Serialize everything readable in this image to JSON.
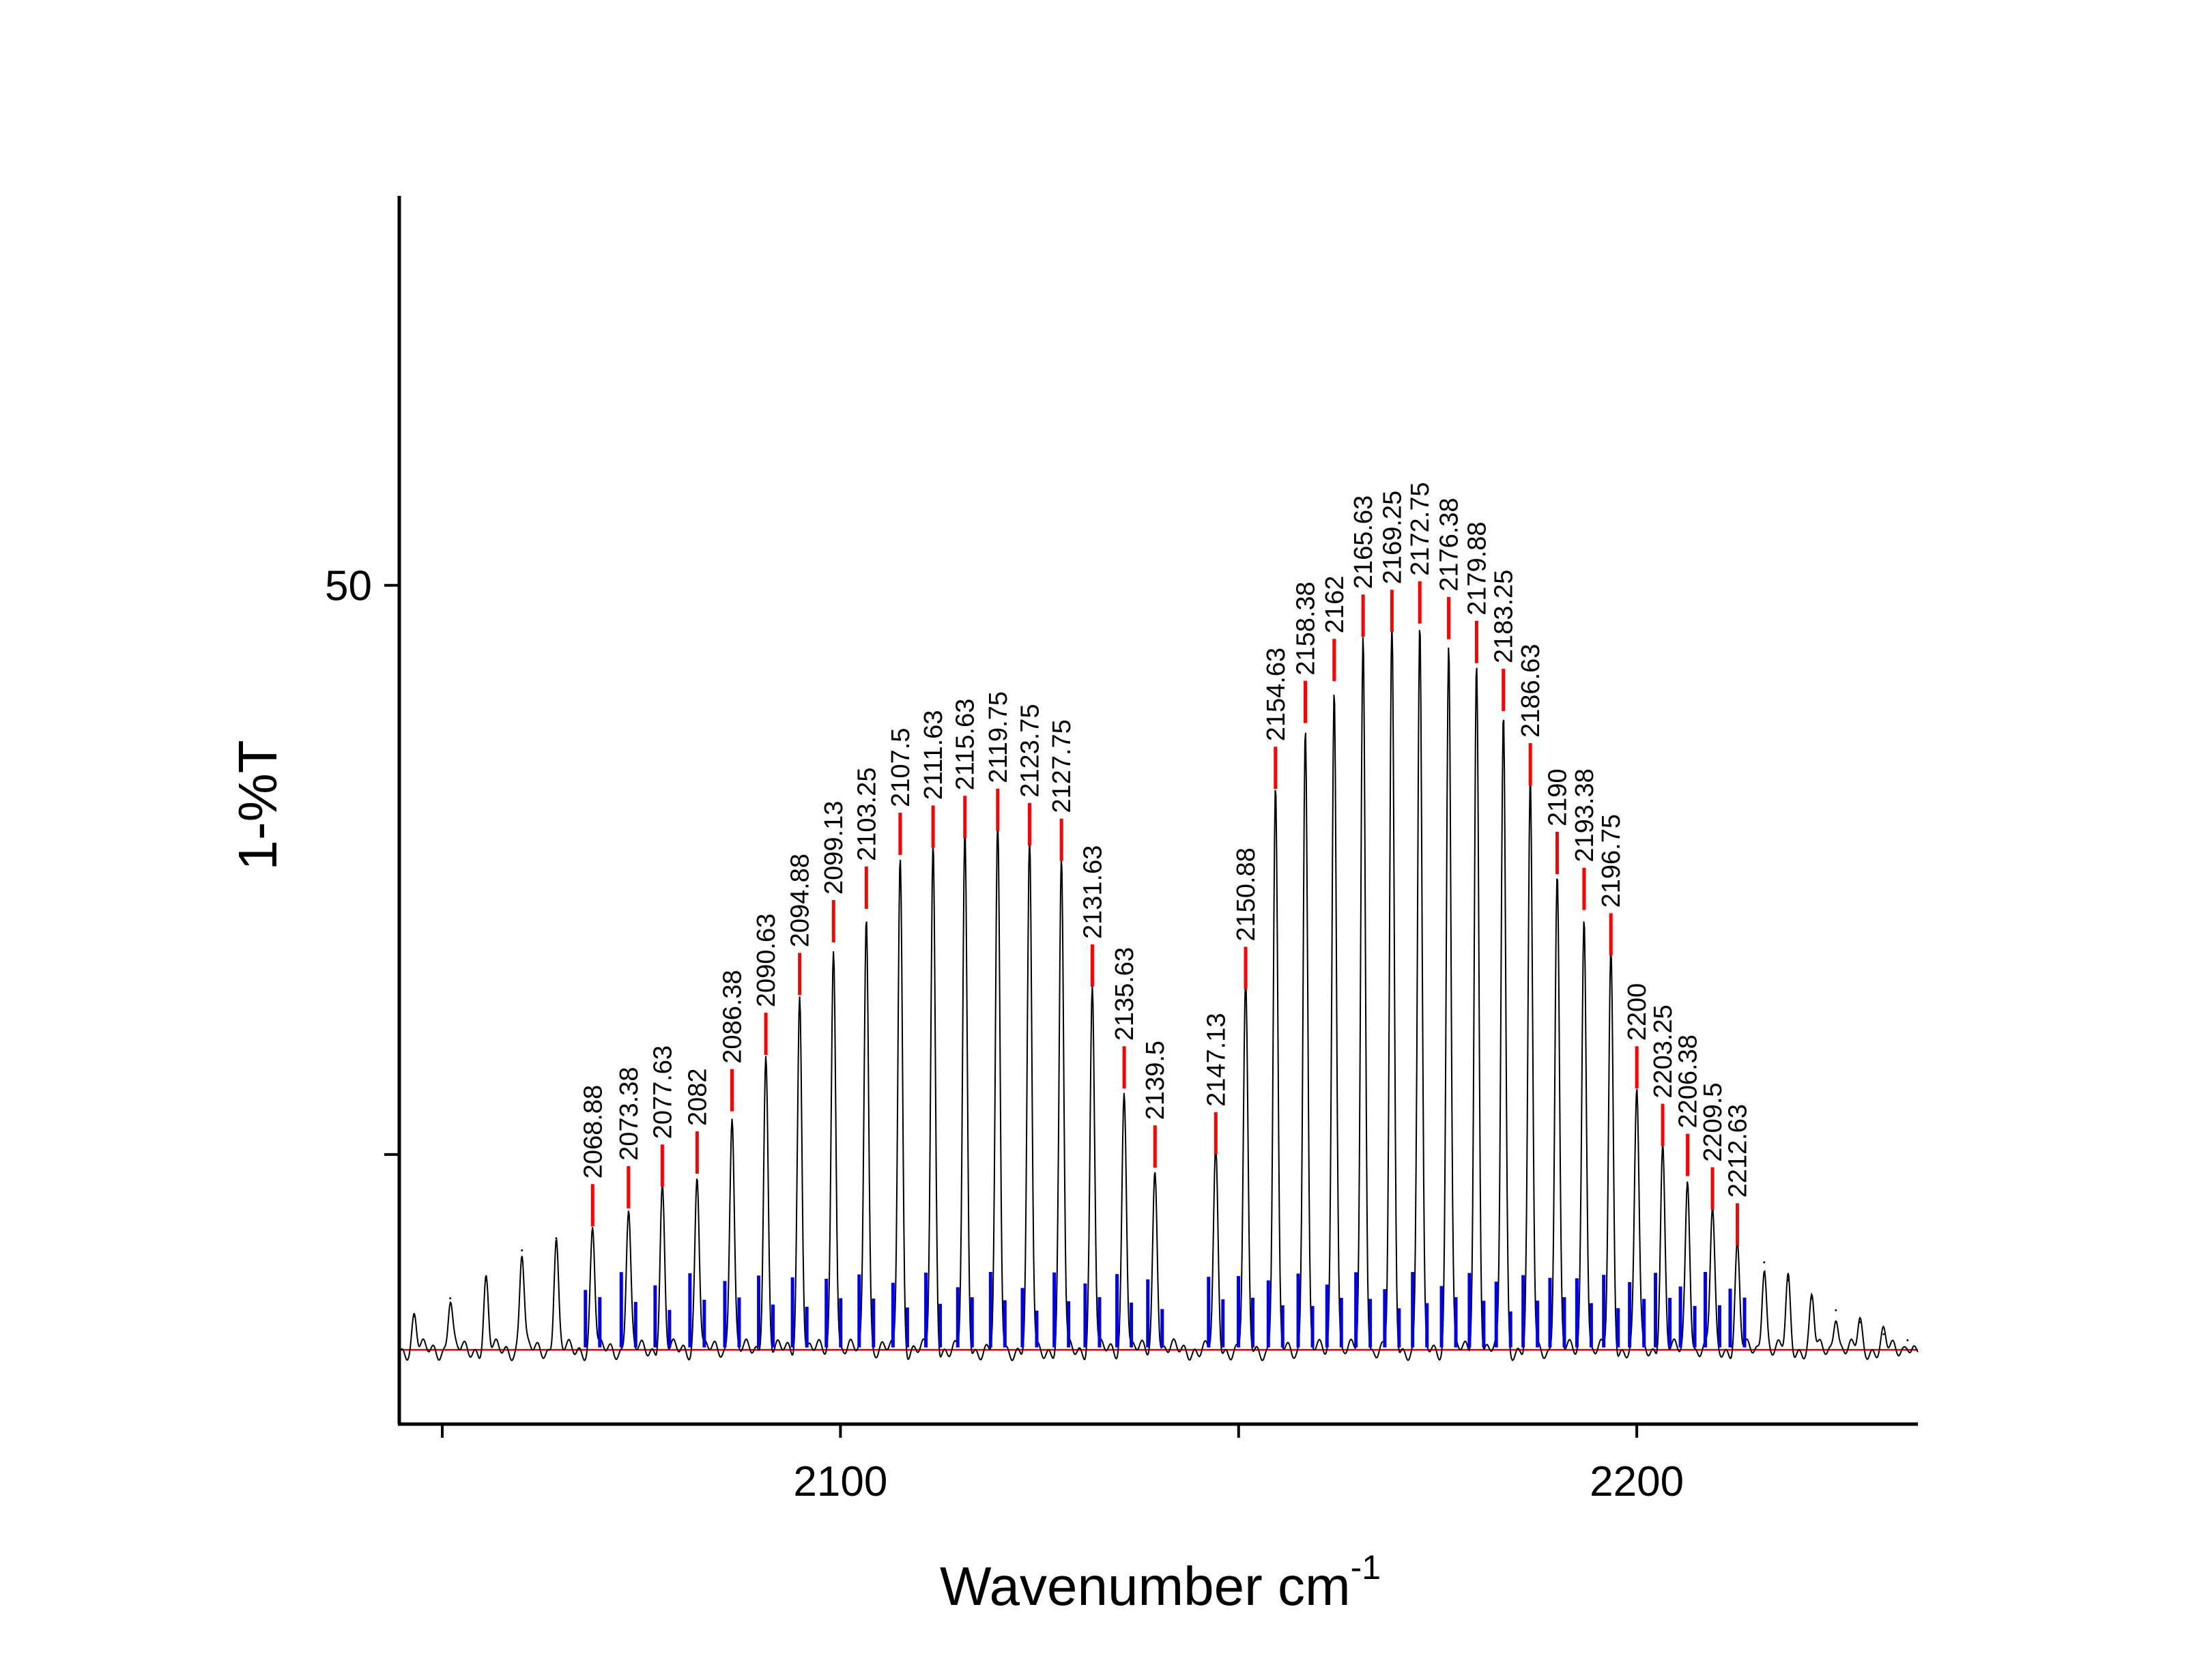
{
  "chart_data": {
    "type": "line",
    "xlabel": "Wavenumber cm",
    "xlabel_sup": "-1",
    "ylabel": "1-%T",
    "xlim": [
      2044.6,
      2235.3
    ],
    "ylim": [
      -20.0,
      82.5
    ],
    "x_ticks": [
      2050,
      2100,
      2150,
      2200
    ],
    "x_tick_labels": [
      "",
      "2100",
      "",
      "2200"
    ],
    "y_ticks": [
      2.5,
      50
    ],
    "y_tick_labels": [
      "",
      "50"
    ],
    "grid": false,
    "legend": "none",
    "colors": {
      "spectrum": "#000000",
      "baseline": "#e00000",
      "peak_marker": "#ff0000",
      "stick": "#0000ee"
    },
    "baseline_y": -13.8,
    "labeled_peaks": {
      "x": [
        2068.88,
        2073.38,
        2077.63,
        2082,
        2086.38,
        2090.63,
        2094.88,
        2099.13,
        2103.25,
        2107.5,
        2111.63,
        2115.63,
        2119.75,
        2123.75,
        2127.75,
        2131.63,
        2135.63,
        2139.5,
        2147.13,
        2150.88,
        2154.63,
        2158.38,
        2162,
        2165.63,
        2169.25,
        2172.75,
        2176.38,
        2179.88,
        2183.25,
        2186.63,
        2190,
        2193.38,
        2196.75,
        2200,
        2203.25,
        2206.38,
        2209.5,
        2212.63
      ],
      "y": [
        -3.5,
        -2.0,
        -0.2,
        0.9,
        6.1,
        10.8,
        15.8,
        20.2,
        23.0,
        27.5,
        28.1,
        28.9,
        29.5,
        28.3,
        27.0,
        16.5,
        8.0,
        1.4,
        2.5,
        16.3,
        33.0,
        38.5,
        42.0,
        45.7,
        46.1,
        46.8,
        45.5,
        43.5,
        39.5,
        33.3,
        25.9,
        22.9,
        19.1,
        8.0,
        3.2,
        0.7,
        -2.1,
        -5.1
      ],
      "labels": [
        "2068.88",
        "2073.38",
        "2077.63",
        "2082",
        "2086.38",
        "2090.63",
        "2094.88",
        "2099.13",
        "2103.25",
        "2107.5",
        "2111.63",
        "2115.63",
        "2119.75",
        "2123.75",
        "2127.75",
        "2131.63",
        "2135.63",
        "2139.5",
        "2147.13",
        "2150.88",
        "2154.63",
        "2158.38",
        "2162",
        "2165.63",
        "2169.25",
        "2172.75",
        "2176.38",
        "2179.88",
        "2183.25",
        "2186.63",
        "2190",
        "2193.38",
        "2196.75",
        "2200",
        "2203.25",
        "2206.38",
        "2209.5",
        "2212.63"
      ]
    },
    "unlabeled_peaks": {
      "x": [
        2046.5,
        2051.0,
        2055.5,
        2060.0,
        2064.3,
        2216.0,
        2219.0,
        2222.0,
        2225.0,
        2228.0,
        2231.0,
        2234.0
      ],
      "y": [
        -11.0,
        -9.5,
        -8.0,
        -5.5,
        -4.5,
        -6.5,
        -8.0,
        -9.5,
        -10.5,
        -11.5,
        -12.5,
        -13.0
      ]
    }
  }
}
